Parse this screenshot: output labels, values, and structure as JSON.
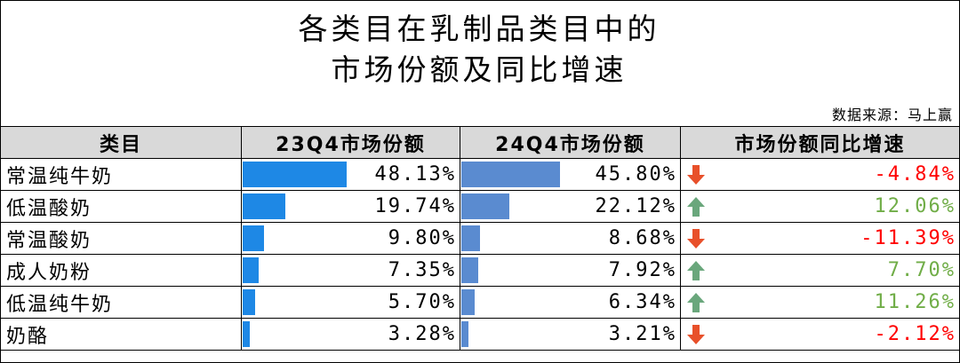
{
  "title_line1": "各类目在乳制品类目中的",
  "title_line2": "市场份额及同比增速",
  "source": "数据来源：马上赢",
  "colors": {
    "bar_23q4": "#1e88e5",
    "bar_24q4": "#5a8bd0",
    "up": "#6aa77c",
    "down": "#e8502a",
    "positive_text": "#70ad47",
    "negative_text": "#ff0000",
    "header_bg": "#d9d9d9"
  },
  "chart_data": {
    "type": "table",
    "columns": [
      "类目",
      "23Q4市场份额",
      "24Q4市场份额",
      "市场份额同比增速"
    ],
    "rows": [
      {
        "category": "常温纯牛奶",
        "q23": 48.13,
        "q23_label": "48.13%",
        "q24": 45.8,
        "q24_label": "45.80%",
        "growth": -4.84,
        "growth_label": "-4.84%",
        "trend": "down"
      },
      {
        "category": "低温酸奶",
        "q23": 19.74,
        "q23_label": "19.74%",
        "q24": 22.12,
        "q24_label": "22.12%",
        "growth": 12.06,
        "growth_label": "12.06%",
        "trend": "up"
      },
      {
        "category": "常温酸奶",
        "q23": 9.8,
        "q23_label": "9.80%",
        "q24": 8.68,
        "q24_label": "8.68%",
        "growth": -11.39,
        "growth_label": "-11.39%",
        "trend": "down"
      },
      {
        "category": "成人奶粉",
        "q23": 7.35,
        "q23_label": "7.35%",
        "q24": 7.92,
        "q24_label": "7.92%",
        "growth": 7.7,
        "growth_label": "7.70%",
        "trend": "up"
      },
      {
        "category": "低温纯牛奶",
        "q23": 5.7,
        "q23_label": "5.70%",
        "q24": 6.34,
        "q24_label": "6.34%",
        "growth": 11.26,
        "growth_label": "11.26%",
        "trend": "up"
      },
      {
        "category": "奶酪",
        "q23": 3.28,
        "q23_label": "3.28%",
        "q24": 3.21,
        "q24_label": "3.21%",
        "growth": -2.12,
        "growth_label": "-2.12%",
        "trend": "down"
      }
    ]
  }
}
